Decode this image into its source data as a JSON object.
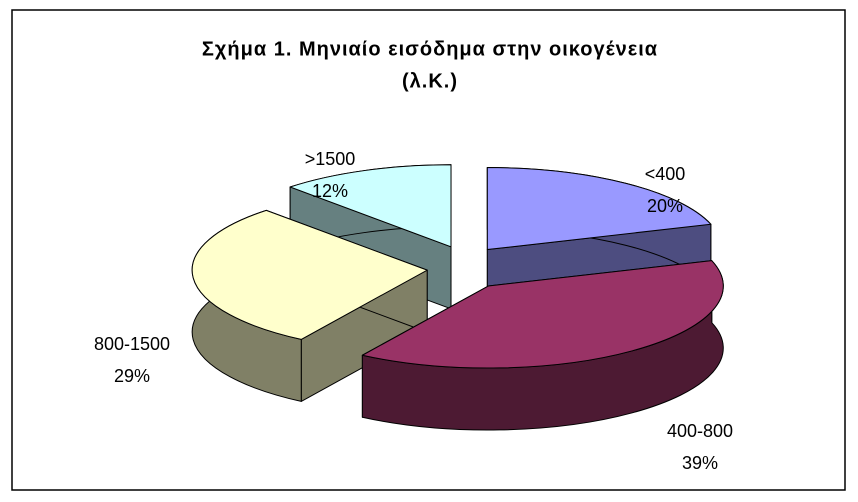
{
  "chart_data": {
    "type": "pie3d",
    "title": [
      "Σχήμα 1.  Μηνιαίο εισόδημα στην οικογένεια",
      "(λ.Κ.)"
    ],
    "categories": [
      "<400",
      "400-800",
      "800-1500",
      ">1500"
    ],
    "values": [
      20,
      39,
      29,
      12
    ],
    "value_labels": [
      "20%",
      "39%",
      "29%",
      "12%"
    ],
    "colors": [
      "#9999ff",
      "#993366",
      "#ffffcc",
      "#ccffff"
    ]
  }
}
